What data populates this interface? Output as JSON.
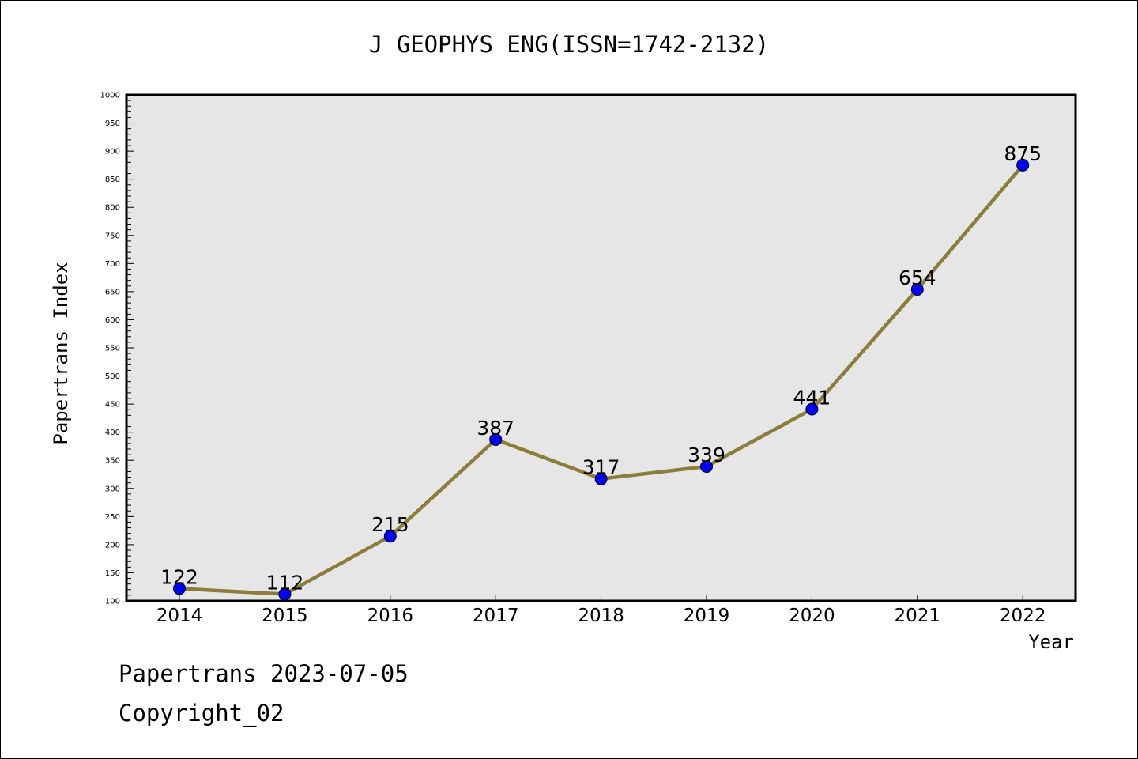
{
  "chart_data": {
    "type": "line",
    "title": "J GEOPHYS ENG(ISSN=1742-2132)",
    "xlabel": "Year",
    "ylabel": "Papertrans Index",
    "categories": [
      "2014",
      "2015",
      "2016",
      "2017",
      "2018",
      "2019",
      "2020",
      "2021",
      "2022"
    ],
    "series": [
      {
        "values": [
          122,
          112,
          215,
          387,
          317,
          339,
          441,
          654,
          875
        ]
      }
    ],
    "data_labels": [
      "122",
      "112",
      "215",
      "387",
      "317",
      "339",
      "441",
      "654",
      "875"
    ],
    "ylim": [
      100,
      1000
    ],
    "yticks": [
      "100",
      "150",
      "200",
      "250",
      "300",
      "350",
      "400",
      "450",
      "500",
      "550",
      "600",
      "650",
      "700",
      "750",
      "800",
      "850",
      "900",
      "950",
      "1000"
    ],
    "ytick_values": [
      100,
      150,
      200,
      250,
      300,
      350,
      400,
      450,
      500,
      550,
      600,
      650,
      700,
      750,
      800,
      850,
      900,
      950,
      1000
    ],
    "grid": false,
    "legend": "none",
    "colors": {
      "line": "#8b7d3a",
      "marker": "#0000ff",
      "plot_background": "#e6e6e6"
    }
  },
  "footer": {
    "date_text": "Papertrans 2023-07-05",
    "copyright_text": "Copyright_02"
  }
}
